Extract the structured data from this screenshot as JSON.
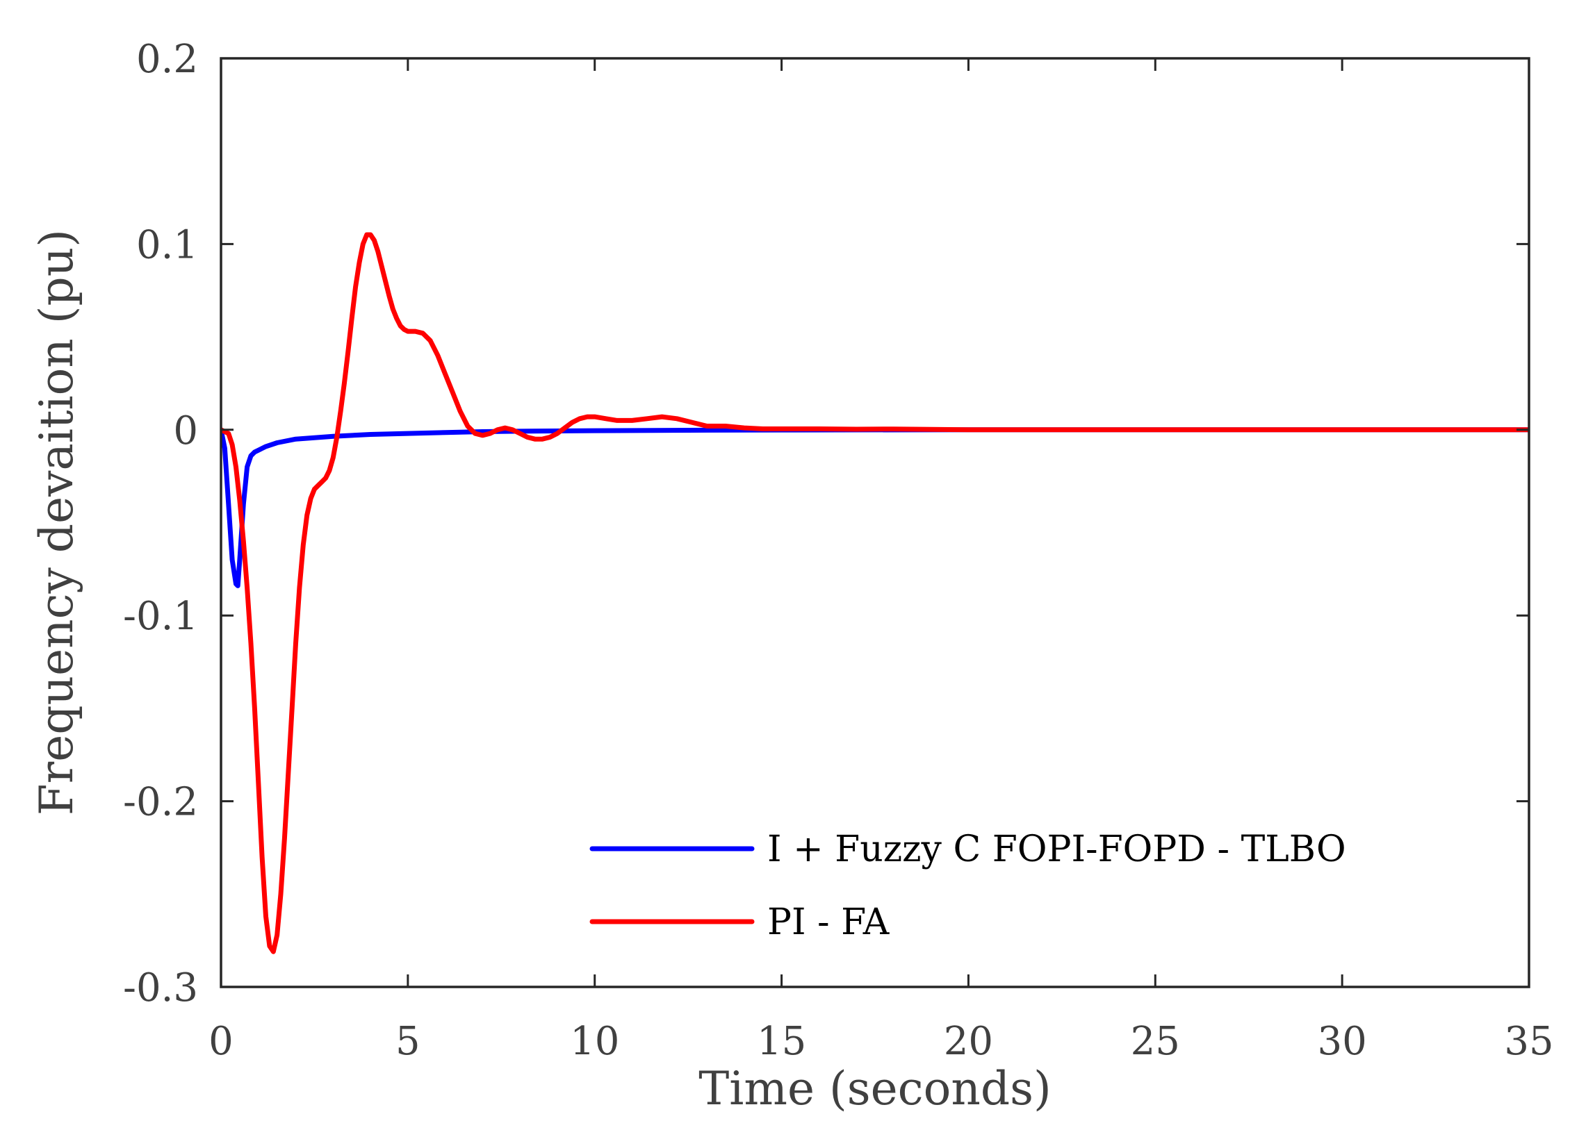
{
  "chart_data": {
    "type": "line",
    "title": "",
    "xlabel": "Time (seconds)",
    "ylabel": "Frequency devaition (pu)",
    "xlim": [
      0,
      35
    ],
    "ylim": [
      -0.3,
      0.2
    ],
    "xticks": [
      0,
      5,
      10,
      15,
      20,
      25,
      30,
      35
    ],
    "xtick_labels": [
      "0",
      "5",
      "10",
      "15",
      "20",
      "25",
      "30",
      "35"
    ],
    "yticks": [
      0.2,
      0.1,
      0,
      -0.1,
      -0.2,
      -0.3
    ],
    "ytick_labels": [
      "0.2",
      "0.1",
      "0",
      "-0.1",
      "-0.2",
      "-0.3"
    ],
    "grid": false,
    "legend_position": "bottom-right",
    "series": [
      {
        "name": "I + Fuzzy C FOPI-FOPD - TLBO",
        "color": "#0000ff",
        "x": [
          0,
          0.1,
          0.2,
          0.3,
          0.4,
          0.45,
          0.5,
          0.6,
          0.7,
          0.8,
          0.9,
          1.0,
          1.2,
          1.5,
          2,
          3,
          4,
          5,
          6,
          7,
          8,
          10,
          12,
          15,
          20,
          25,
          30,
          35
        ],
        "y": [
          0,
          -0.01,
          -0.04,
          -0.07,
          -0.083,
          -0.084,
          -0.07,
          -0.04,
          -0.02,
          -0.014,
          -0.012,
          -0.011,
          -0.009,
          -0.007,
          -0.005,
          -0.0035,
          -0.0025,
          -0.002,
          -0.0015,
          -0.001,
          -0.0008,
          -0.0005,
          -0.0003,
          -0.0001,
          0,
          0,
          0,
          0
        ]
      },
      {
        "name": "PI - FA",
        "color": "#ff0000",
        "x": [
          0,
          0.2,
          0.3,
          0.4,
          0.5,
          0.6,
          0.7,
          0.8,
          0.9,
          1.0,
          1.1,
          1.2,
          1.3,
          1.4,
          1.5,
          1.6,
          1.7,
          1.8,
          1.9,
          2.0,
          2.1,
          2.2,
          2.3,
          2.4,
          2.5,
          2.6,
          2.7,
          2.8,
          2.9,
          3.0,
          3.1,
          3.2,
          3.3,
          3.4,
          3.5,
          3.6,
          3.7,
          3.8,
          3.9,
          4.0,
          4.1,
          4.2,
          4.3,
          4.4,
          4.5,
          4.6,
          4.7,
          4.8,
          4.9,
          5.0,
          5.2,
          5.4,
          5.6,
          5.8,
          6.0,
          6.2,
          6.4,
          6.6,
          6.8,
          7.0,
          7.2,
          7.4,
          7.6,
          7.8,
          8.0,
          8.2,
          8.4,
          8.6,
          8.8,
          9.0,
          9.2,
          9.4,
          9.6,
          9.8,
          10.0,
          10.3,
          10.6,
          11.0,
          11.4,
          11.8,
          12.2,
          12.6,
          13.0,
          13.5,
          14.0,
          14.5,
          15.0,
          16,
          17,
          18,
          19,
          20,
          22,
          25,
          28,
          30,
          32,
          35
        ],
        "y": [
          0,
          -0.002,
          -0.008,
          -0.02,
          -0.038,
          -0.06,
          -0.085,
          -0.115,
          -0.15,
          -0.19,
          -0.23,
          -0.262,
          -0.278,
          -0.281,
          -0.272,
          -0.25,
          -0.22,
          -0.185,
          -0.15,
          -0.115,
          -0.085,
          -0.062,
          -0.046,
          -0.037,
          -0.032,
          -0.03,
          -0.028,
          -0.026,
          -0.022,
          -0.015,
          -0.004,
          0.01,
          0.025,
          0.042,
          0.06,
          0.077,
          0.09,
          0.1,
          0.105,
          0.105,
          0.102,
          0.096,
          0.088,
          0.08,
          0.072,
          0.065,
          0.06,
          0.056,
          0.054,
          0.053,
          0.053,
          0.052,
          0.048,
          0.04,
          0.03,
          0.02,
          0.01,
          0.002,
          -0.002,
          -0.003,
          -0.002,
          0,
          0.001,
          0,
          -0.002,
          -0.004,
          -0.005,
          -0.005,
          -0.004,
          -0.002,
          0.001,
          0.004,
          0.006,
          0.007,
          0.007,
          0.006,
          0.005,
          0.005,
          0.006,
          0.007,
          0.006,
          0.004,
          0.002,
          0.002,
          0.001,
          0.0005,
          0.0005,
          0.0005,
          0.0003,
          0.0004,
          0.0002,
          0,
          0,
          0,
          0,
          0,
          0,
          0
        ]
      }
    ]
  }
}
